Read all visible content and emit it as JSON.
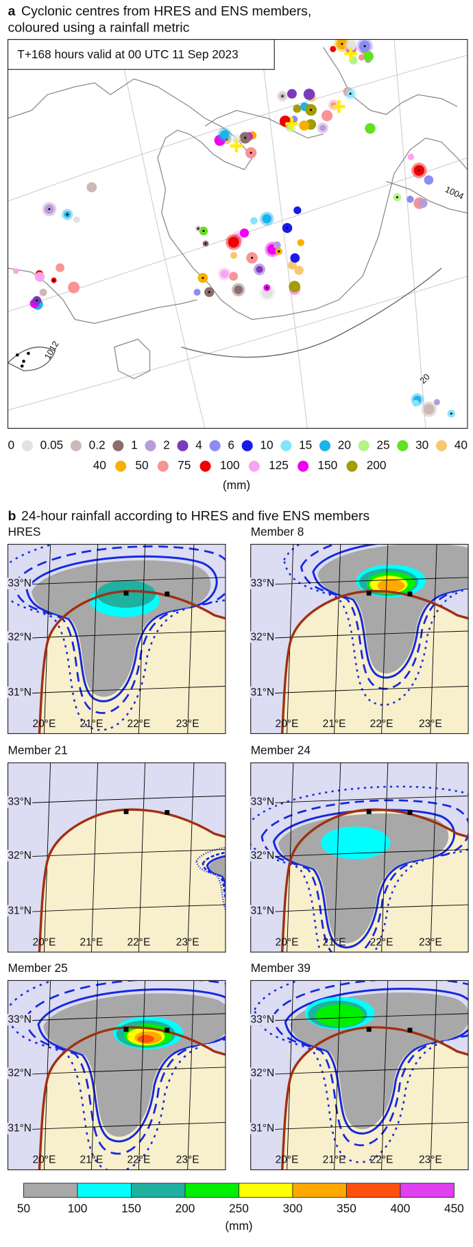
{
  "panel_a": {
    "label": "a",
    "title_lines": [
      "Cyclonic centres from HRES and ENS members,",
      "coloured using a rainfall metric"
    ],
    "valid_time": "T+168 hours valid at 00 UTC 11 Sep 2023",
    "contour_labels": [
      "1012",
      "1004",
      "20"
    ],
    "legend": {
      "rows": [
        {
          "labels": [
            0,
            0.05,
            0.2,
            1,
            2,
            4,
            6,
            10,
            15,
            20,
            25,
            30,
            40
          ],
          "colors": [
            "#e2e2e2",
            "#cdb8b8",
            "#8c6c6c",
            "#b89cd8",
            "#7a3cbc",
            "#8c8cf2",
            "#1a1ae8",
            "#86e4fa",
            "#1eb2ea",
            "#b4f486",
            "#62e022",
            "#f8c870"
          ]
        },
        {
          "labels": [
            40,
            50,
            75,
            100,
            125,
            150,
            200
          ],
          "colors": [
            "#f8b000",
            "#f89494",
            "#f00000",
            "#f8a4f2",
            "#f000f0",
            "#a49c00"
          ]
        }
      ],
      "unit": "(mm)"
    }
  },
  "panel_b": {
    "label": "b",
    "title": "24-hour rainfall according to HRES and five ENS members",
    "maps": [
      "HRES",
      "Member 8",
      "Member 21",
      "Member 24",
      "Member 25",
      "Member 39"
    ],
    "lat_labels": [
      "33°N",
      "32°N",
      "31°N"
    ],
    "lon_labels": [
      "20°E",
      "21°E",
      "22°E",
      "23°E"
    ],
    "colorbar": {
      "ticks": [
        50,
        100,
        150,
        200,
        250,
        300,
        350,
        400,
        450
      ],
      "colors": [
        "#a8a8a8",
        "#00ffff",
        "#20b0a0",
        "#00f000",
        "#ffff00",
        "#ffa800",
        "#ff5010",
        "#e040f0"
      ],
      "unit": "(mm)"
    }
  }
}
